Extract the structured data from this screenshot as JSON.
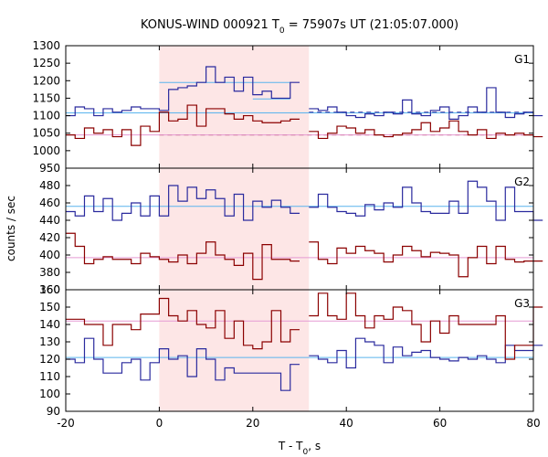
{
  "chart_data": {
    "type": "line",
    "title": {
      "pre": "KONUS-WIND 000921 T",
      "sub": "0",
      "post": " = 75907s UT (21:05:07.000)"
    },
    "xlabel": {
      "pre": "T - T",
      "sub": "0",
      "post": ", s"
    },
    "ylabel": "counts / sec",
    "xlim": [
      -20,
      80
    ],
    "xticks": [
      -20,
      0,
      20,
      40,
      60,
      80
    ],
    "highlight_interval": [
      0,
      32
    ],
    "colors": {
      "blue": "#2a2a9e",
      "red": "#8b0000",
      "light_blue": "#5ab4ee",
      "pink": "#e59ad3",
      "highlight": "#fde6e6"
    },
    "panels": [
      {
        "label": "G1",
        "ylim": [
          950,
          1300
        ],
        "yticks": [
          950,
          1000,
          1050,
          1100,
          1150,
          1200,
          1250,
          1300
        ],
        "series": [
          {
            "color_key": "blue",
            "x": [
              -20,
              -18,
              -16,
              -14,
              -12,
              -10,
              -8,
              -6,
              -4,
              -2,
              0,
              2,
              4,
              6,
              8,
              10,
              12,
              14,
              16,
              18,
              20,
              22,
              24,
              26,
              28
            ],
            "values": [
              1100,
              1125,
              1120,
              1100,
              1120,
              1110,
              1115,
              1125,
              1120,
              1120,
              1115,
              1175,
              1180,
              1185,
              1195,
              1240,
              1195,
              1210,
              1170,
              1210,
              1160,
              1170,
              1150,
              1150,
              1195
            ]
          },
          {
            "color_key": "blue",
            "x": [
              32,
              34,
              36,
              38,
              40,
              42,
              44,
              46,
              48,
              50,
              52,
              54,
              56,
              58,
              60,
              62,
              64,
              66,
              68,
              70,
              72,
              74,
              76,
              78,
              80
            ],
            "values": [
              1120,
              1115,
              1125,
              1110,
              1100,
              1095,
              1105,
              1100,
              1110,
              1105,
              1145,
              1105,
              1100,
              1115,
              1125,
              1090,
              1100,
              1125,
              1110,
              1180,
              1110,
              1095,
              1105,
              1110,
              1100
            ]
          },
          {
            "color_key": "red",
            "x": [
              -20,
              -18,
              -16,
              -14,
              -12,
              -10,
              -8,
              -6,
              -4,
              -2,
              0,
              2,
              4,
              6,
              8,
              10,
              12,
              14,
              16,
              18,
              20,
              22,
              24,
              26,
              28
            ],
            "values": [
              1045,
              1035,
              1065,
              1050,
              1060,
              1040,
              1060,
              1015,
              1070,
              1055,
              1110,
              1085,
              1090,
              1130,
              1070,
              1120,
              1120,
              1105,
              1090,
              1100,
              1085,
              1080,
              1080,
              1085,
              1090
            ]
          },
          {
            "color_key": "red",
            "x": [
              32,
              34,
              36,
              38,
              40,
              42,
              44,
              46,
              48,
              50,
              52,
              54,
              56,
              58,
              60,
              62,
              64,
              66,
              68,
              70,
              72,
              74,
              76,
              78,
              80
            ],
            "values": [
              1055,
              1035,
              1050,
              1070,
              1065,
              1050,
              1060,
              1045,
              1040,
              1045,
              1050,
              1060,
              1080,
              1055,
              1065,
              1085,
              1055,
              1045,
              1060,
              1035,
              1050,
              1045,
              1050,
              1045,
              1040
            ]
          }
        ],
        "levels": [
          {
            "color_key": "light_blue",
            "value": 1195,
            "x_range": [
              0,
              28
            ]
          },
          {
            "color_key": "light_blue",
            "value": 1148,
            "x_range": [
              20,
              28
            ]
          },
          {
            "color_key": "light_blue",
            "value": 1108,
            "x_range": [
              -20,
              80
            ]
          },
          {
            "color_key": "blue",
            "value": 1110,
            "x_range": [
              32,
              80
            ],
            "dashed": true
          },
          {
            "color_key": "red",
            "value": 1045,
            "x_range": [
              0,
              80
            ],
            "dashed": true
          },
          {
            "color_key": "pink",
            "value": 1045,
            "x_range": [
              -20,
              80
            ]
          }
        ]
      },
      {
        "label": "G2",
        "ylim": [
          360,
          500
        ],
        "yticks": [
          360,
          380,
          400,
          420,
          440,
          460,
          480
        ],
        "series": [
          {
            "color_key": "blue",
            "x": [
              -20,
              -18,
              -16,
              -14,
              -12,
              -10,
              -8,
              -6,
              -4,
              -2,
              0,
              2,
              4,
              6,
              8,
              10,
              12,
              14,
              16,
              18,
              20,
              22,
              24,
              26,
              28
            ],
            "values": [
              450,
              445,
              468,
              450,
              465,
              440,
              448,
              460,
              445,
              468,
              445,
              480,
              462,
              478,
              465,
              475,
              465,
              445,
              470,
              440,
              462,
              455,
              463,
              455,
              448
            ]
          },
          {
            "color_key": "blue",
            "x": [
              32,
              34,
              36,
              38,
              40,
              42,
              44,
              46,
              48,
              50,
              52,
              54,
              56,
              58,
              60,
              62,
              64,
              66,
              68,
              70,
              72,
              74,
              76,
              78,
              80
            ],
            "values": [
              455,
              470,
              455,
              450,
              448,
              445,
              458,
              452,
              460,
              455,
              478,
              460,
              450,
              448,
              448,
              462,
              448,
              485,
              478,
              462,
              440,
              478,
              450,
              450,
              440
            ]
          },
          {
            "color_key": "red",
            "x": [
              -20,
              -18,
              -16,
              -14,
              -12,
              -10,
              -8,
              -6,
              -4,
              -2,
              0,
              2,
              4,
              6,
              8,
              10,
              12,
              14,
              16,
              18,
              20,
              22,
              24,
              26,
              28
            ],
            "values": [
              425,
              410,
              390,
              395,
              398,
              395,
              395,
              390,
              402,
              398,
              395,
              392,
              400,
              390,
              402,
              415,
              400,
              395,
              388,
              402,
              372,
              412,
              395,
              395,
              393
            ]
          },
          {
            "color_key": "red",
            "x": [
              32,
              34,
              36,
              38,
              40,
              42,
              44,
              46,
              48,
              50,
              52,
              54,
              56,
              58,
              60,
              62,
              64,
              66,
              68,
              70,
              72,
              74,
              76,
              78,
              80
            ],
            "values": [
              415,
              395,
              390,
              408,
              402,
              410,
              405,
              402,
              392,
              400,
              410,
              405,
              398,
              403,
              402,
              400,
              375,
              397,
              410,
              390,
              410,
              395,
              392,
              393,
              393
            ]
          }
        ],
        "levels": [
          {
            "color_key": "light_blue",
            "value": 456,
            "x_range": [
              -20,
              80
            ]
          },
          {
            "color_key": "pink",
            "value": 397,
            "x_range": [
              -20,
              80
            ]
          }
        ]
      },
      {
        "label": "G3",
        "ylim": [
          90,
          160
        ],
        "yticks": [
          90,
          100,
          110,
          120,
          130,
          140,
          150,
          160
        ],
        "series": [
          {
            "color_key": "blue",
            "x": [
              -20,
              -18,
              -16,
              -14,
              -12,
              -10,
              -8,
              -6,
              -4,
              -2,
              0,
              2,
              4,
              6,
              8,
              10,
              12,
              14,
              16,
              18,
              20,
              22,
              24,
              26,
              28
            ],
            "values": [
              120,
              118,
              132,
              120,
              112,
              112,
              118,
              120,
              108,
              118,
              126,
              120,
              122,
              110,
              126,
              120,
              108,
              115,
              112,
              112,
              112,
              112,
              112,
              102,
              117
            ]
          },
          {
            "color_key": "blue",
            "x": [
              32,
              34,
              36,
              38,
              40,
              42,
              44,
              46,
              48,
              50,
              52,
              54,
              56,
              58,
              60,
              62,
              64,
              66,
              68,
              70,
              72,
              74,
              76,
              78,
              80
            ],
            "values": [
              122,
              120,
              118,
              125,
              115,
              132,
              130,
              128,
              118,
              127,
              122,
              124,
              125,
              121,
              120,
              119,
              121,
              120,
              122,
              120,
              118,
              128,
              125,
              125,
              128
            ]
          },
          {
            "color_key": "red",
            "x": [
              -20,
              -18,
              -16,
              -14,
              -12,
              -10,
              -8,
              -6,
              -4,
              -2,
              0,
              2,
              4,
              6,
              8,
              10,
              12,
              14,
              16,
              18,
              20,
              22,
              24,
              26,
              28
            ],
            "values": [
              143,
              143,
              140,
              140,
              128,
              140,
              140,
              137,
              146,
              146,
              155,
              145,
              142,
              148,
              140,
              138,
              148,
              132,
              142,
              128,
              126,
              130,
              148,
              130,
              137
            ]
          },
          {
            "color_key": "red",
            "x": [
              32,
              34,
              36,
              38,
              40,
              42,
              44,
              46,
              48,
              50,
              52,
              54,
              56,
              58,
              60,
              62,
              64,
              66,
              68,
              70,
              72,
              74,
              76,
              78,
              80
            ],
            "values": [
              145,
              158,
              145,
              143,
              158,
              145,
              138,
              145,
              143,
              150,
              148,
              140,
              130,
              142,
              135,
              145,
              140,
              140,
              140,
              140,
              145,
              120,
              128,
              128,
              150
            ]
          }
        ],
        "levels": [
          {
            "color_key": "light_blue",
            "value": 121,
            "x_range": [
              -20,
              80
            ]
          },
          {
            "color_key": "pink",
            "value": 142,
            "x_range": [
              -20,
              80
            ]
          }
        ]
      }
    ]
  }
}
